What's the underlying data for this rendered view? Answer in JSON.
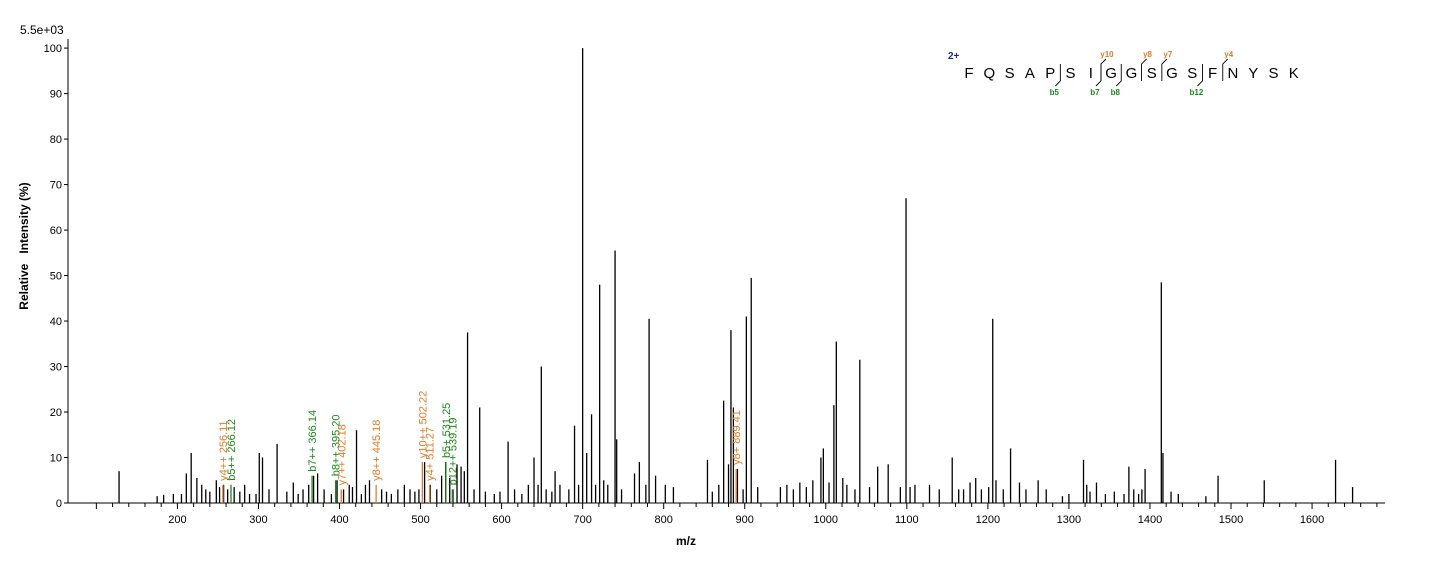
{
  "chart_data": {
    "type": "bar",
    "scale_label": "5.5e+03",
    "xlabel": "m/z",
    "ylabel": "Relative   Intensity (%)",
    "xlim": [
      65,
      1690
    ],
    "ylim": [
      0,
      102
    ],
    "x_ticks": [
      200,
      300,
      400,
      500,
      600,
      700,
      800,
      900,
      1000,
      1100,
      1200,
      1300,
      1400,
      1500,
      1600
    ],
    "y_ticks": [
      0,
      10,
      20,
      30,
      40,
      50,
      60,
      70,
      80,
      90,
      100
    ],
    "colors": {
      "peaks": "#000000",
      "b_ion": "#1a8a1a",
      "y_ion": "#e07b2a",
      "charge": "#1f1fa0"
    },
    "peaks": [
      [
        128,
        7
      ],
      [
        175,
        1.5
      ],
      [
        183,
        1.8
      ],
      [
        195,
        2
      ],
      [
        205,
        2
      ],
      [
        211,
        6.5
      ],
      [
        217,
        11
      ],
      [
        224,
        5.5
      ],
      [
        230,
        4
      ],
      [
        235,
        3
      ],
      [
        240,
        2.5
      ],
      [
        248,
        5
      ],
      [
        252,
        3.5
      ],
      [
        257,
        4
      ],
      [
        262,
        3
      ],
      [
        270,
        3.5
      ],
      [
        277,
        2.5
      ],
      [
        283,
        4
      ],
      [
        289,
        2
      ],
      [
        297,
        2
      ],
      [
        301,
        11
      ],
      [
        305,
        10
      ],
      [
        313,
        3
      ],
      [
        323,
        13
      ],
      [
        335,
        2.5
      ],
      [
        343,
        4.5
      ],
      [
        349,
        2
      ],
      [
        355,
        3
      ],
      [
        362,
        4
      ],
      [
        368,
        6
      ],
      [
        373,
        6.5
      ],
      [
        381,
        3
      ],
      [
        390,
        2
      ],
      [
        397,
        5
      ],
      [
        405,
        3
      ],
      [
        412,
        4
      ],
      [
        416,
        3.5
      ],
      [
        421,
        16
      ],
      [
        427,
        2
      ],
      [
        432,
        4
      ],
      [
        437,
        5
      ],
      [
        452,
        3
      ],
      [
        458,
        2.5
      ],
      [
        464,
        2
      ],
      [
        472,
        3
      ],
      [
        480,
        4
      ],
      [
        487,
        3
      ],
      [
        493,
        2.5
      ],
      [
        498,
        3
      ],
      [
        505,
        9
      ],
      [
        512,
        4
      ],
      [
        520,
        3
      ],
      [
        526,
        6
      ],
      [
        531,
        9
      ],
      [
        536,
        5.5
      ],
      [
        540,
        3
      ],
      [
        545,
        8.5
      ],
      [
        550,
        8
      ],
      [
        554,
        7
      ],
      [
        558,
        37.5
      ],
      [
        566,
        3
      ],
      [
        573,
        21
      ],
      [
        580,
        2.5
      ],
      [
        591,
        2
      ],
      [
        598,
        2.5
      ],
      [
        608,
        13.5
      ],
      [
        616,
        3
      ],
      [
        625,
        2
      ],
      [
        633,
        4
      ],
      [
        640,
        10
      ],
      [
        645,
        4
      ],
      [
        649,
        30
      ],
      [
        655,
        3
      ],
      [
        662,
        2.5
      ],
      [
        666,
        7
      ],
      [
        672,
        4
      ],
      [
        683,
        3
      ],
      [
        690,
        17
      ],
      [
        695,
        4
      ],
      [
        700,
        100
      ],
      [
        705,
        11
      ],
      [
        711,
        19.5
      ],
      [
        716,
        4
      ],
      [
        721,
        48
      ],
      [
        726,
        5
      ],
      [
        731,
        4
      ],
      [
        740,
        55.5
      ],
      [
        742,
        14
      ],
      [
        748,
        3
      ],
      [
        764,
        6.5
      ],
      [
        770,
        9
      ],
      [
        778,
        4
      ],
      [
        782,
        40.5
      ],
      [
        790,
        6
      ],
      [
        802,
        4
      ],
      [
        812,
        3.5
      ],
      [
        854,
        9.5
      ],
      [
        860,
        2.5
      ],
      [
        868,
        4
      ],
      [
        874,
        22.5
      ],
      [
        880,
        8.5
      ],
      [
        883,
        38
      ],
      [
        886,
        21
      ],
      [
        891,
        7.5
      ],
      [
        898,
        3
      ],
      [
        902,
        41
      ],
      [
        908,
        49.5
      ],
      [
        916,
        3.5
      ],
      [
        944,
        3.5
      ],
      [
        952,
        4
      ],
      [
        960,
        3
      ],
      [
        968,
        4.5
      ],
      [
        976,
        3.5
      ],
      [
        984,
        5
      ],
      [
        994,
        10
      ],
      [
        997,
        12
      ],
      [
        1004,
        4.5
      ],
      [
        1010,
        21.5
      ],
      [
        1013,
        35.5
      ],
      [
        1021,
        5.5
      ],
      [
        1026,
        4
      ],
      [
        1036,
        3
      ],
      [
        1042,
        31.5
      ],
      [
        1054,
        3.5
      ],
      [
        1064,
        8
      ],
      [
        1077,
        8.5
      ],
      [
        1092,
        3.5
      ],
      [
        1099,
        67
      ],
      [
        1104,
        3.5
      ],
      [
        1110,
        4
      ],
      [
        1128,
        4
      ],
      [
        1140,
        3
      ],
      [
        1156,
        10
      ],
      [
        1164,
        3
      ],
      [
        1170,
        3
      ],
      [
        1178,
        4.5
      ],
      [
        1185,
        5.5
      ],
      [
        1192,
        3
      ],
      [
        1201,
        3.5
      ],
      [
        1206,
        40.5
      ],
      [
        1210,
        5
      ],
      [
        1219,
        3
      ],
      [
        1228,
        12
      ],
      [
        1239,
        4.5
      ],
      [
        1247,
        3
      ],
      [
        1262,
        5
      ],
      [
        1272,
        3
      ],
      [
        1292,
        1.5
      ],
      [
        1300,
        2
      ],
      [
        1318,
        9.5
      ],
      [
        1322,
        4
      ],
      [
        1326,
        2.5
      ],
      [
        1334,
        4.5
      ],
      [
        1345,
        2
      ],
      [
        1356,
        2.5
      ],
      [
        1368,
        2
      ],
      [
        1374,
        8
      ],
      [
        1380,
        3
      ],
      [
        1386,
        2
      ],
      [
        1390,
        3
      ],
      [
        1394,
        7.5
      ],
      [
        1414,
        48.5
      ],
      [
        1416,
        11
      ],
      [
        1426,
        2.5
      ],
      [
        1435,
        2
      ],
      [
        1469,
        1.5
      ],
      [
        1484,
        6
      ],
      [
        1541,
        5
      ],
      [
        1629,
        9.5
      ],
      [
        1650,
        3.5
      ]
    ],
    "annotations": [
      {
        "mz": 266.12,
        "label": "b5++ 266.12",
        "ion": "b"
      },
      {
        "mz": 256.11,
        "label": "y4++ 256.11",
        "ion": "y"
      },
      {
        "mz": 366.14,
        "label": "b7++ 366.14",
        "ion": "b"
      },
      {
        "mz": 395.2,
        "label": "b8++ 395.20",
        "ion": "b"
      },
      {
        "mz": 402.18,
        "label": "y7++ 402.18",
        "ion": "y"
      },
      {
        "mz": 445.18,
        "label": "y8++ 445.18",
        "ion": "y"
      },
      {
        "mz": 502.22,
        "label": "y10++ 502.22",
        "ion": "y"
      },
      {
        "mz": 511.27,
        "label": "y4+ 511.27",
        "ion": "y"
      },
      {
        "mz": 531.25,
        "label": "b5+ 531.25",
        "ion": "b"
      },
      {
        "mz": 539.19,
        "label": "b12++ 539.19",
        "ion": "b"
      },
      {
        "mz": 889.41,
        "label": "y8+ 889.41",
        "ion": "y"
      }
    ],
    "peptide": {
      "charge_label": "2+",
      "sequence": [
        "F",
        "Q",
        "S",
        "A",
        "P",
        "S",
        "I",
        "G",
        "G",
        "S",
        "G",
        "S",
        "F",
        "N",
        "Y",
        "S",
        "K"
      ],
      "b_ions": [
        {
          "label": "b5",
          "after": 5
        },
        {
          "label": "b7",
          "after": 7
        },
        {
          "label": "b8",
          "after": 8
        },
        {
          "label": "b12",
          "after": 12
        }
      ],
      "y_ions": [
        {
          "label": "y10",
          "after": 7
        },
        {
          "label": "y8",
          "after": 9
        },
        {
          "label": "y7",
          "after": 10
        },
        {
          "label": "y4",
          "after": 13
        }
      ]
    }
  }
}
